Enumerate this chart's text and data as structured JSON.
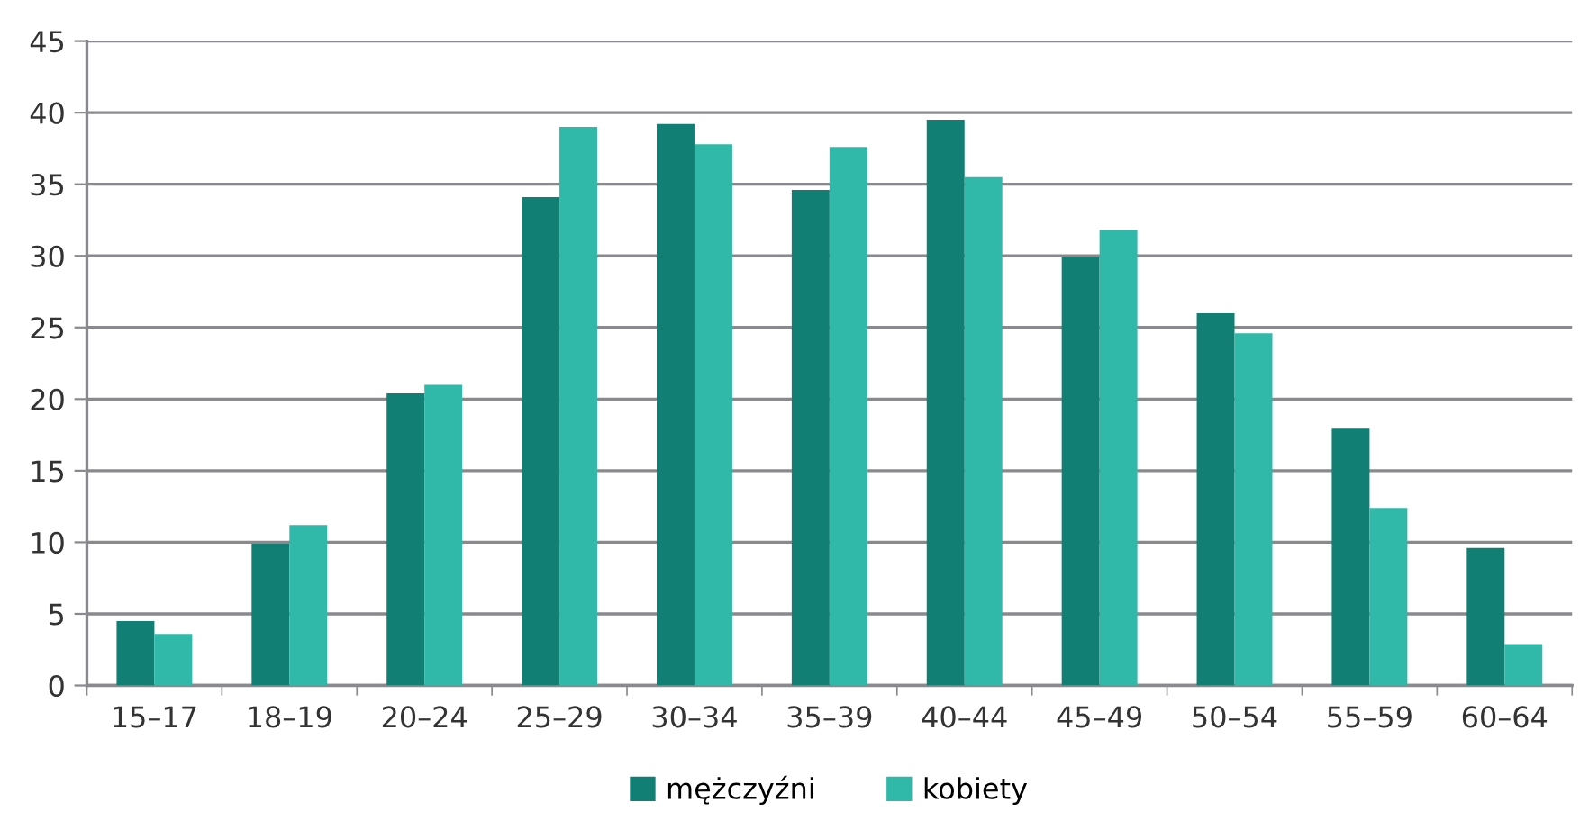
{
  "chart_data": {
    "type": "bar",
    "categories": [
      "15–17",
      "18–19",
      "20–24",
      "25–29",
      "30–34",
      "35–39",
      "40–44",
      "45–49",
      "50–54",
      "55–59",
      "60–64"
    ],
    "series": [
      {
        "name": "mężczyźni",
        "color": "#117f73",
        "values": [
          4.5,
          9.9,
          20.4,
          34.1,
          39.2,
          34.6,
          39.5,
          29.9,
          26.0,
          18.0,
          9.6
        ]
      },
      {
        "name": "kobiety",
        "color": "#30b8a8",
        "values": [
          3.6,
          11.2,
          21.0,
          39.0,
          37.8,
          37.6,
          35.5,
          31.8,
          24.6,
          12.4,
          2.9
        ]
      }
    ],
    "ylim": [
      0,
      45
    ],
    "yticks": [
      0,
      5,
      10,
      15,
      20,
      25,
      30,
      35,
      40,
      45
    ],
    "grid": "y",
    "legend": "bottom"
  }
}
